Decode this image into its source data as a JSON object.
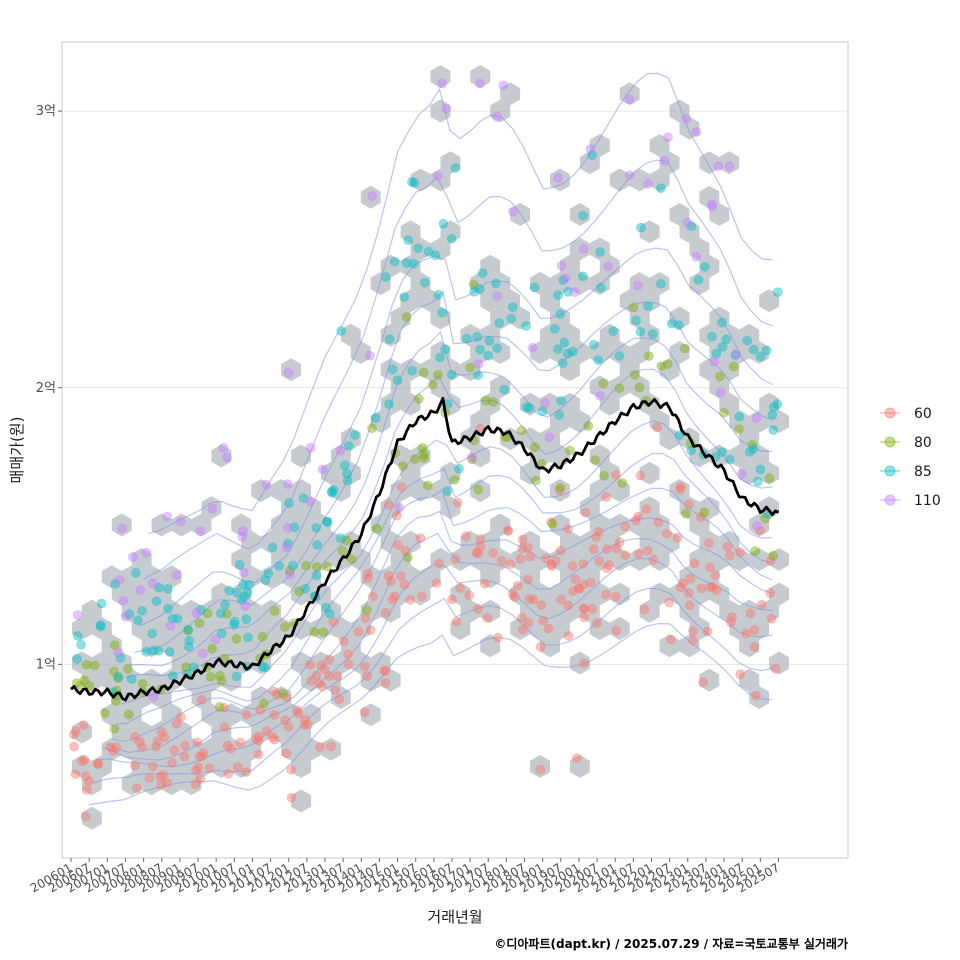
{
  "chart_data": {
    "type": "scatter",
    "xlabel": "거래년월",
    "ylabel": "매매가(원)",
    "caption": "©디아파트(dapt.kr) / 2025.07.29 / 자료=국토교통부 실거래가",
    "x_ticks": [
      "200601",
      "200607",
      "200701",
      "200707",
      "200801",
      "200807",
      "200901",
      "200907",
      "201001",
      "201007",
      "201101",
      "201107",
      "201201",
      "201207",
      "201301",
      "201307",
      "201401",
      "201407",
      "201501",
      "201507",
      "201601",
      "201607",
      "201701",
      "201707",
      "201801",
      "201807",
      "201901",
      "201907",
      "202001",
      "202007",
      "202101",
      "202107",
      "202201",
      "202207",
      "202301",
      "202307",
      "202401",
      "202407",
      "202501",
      "202507"
    ],
    "y_ticks": [
      {
        "value": 1.0,
        "label": "1억"
      },
      {
        "value": 2.0,
        "label": "2억"
      },
      {
        "value": 3.0,
        "label": "3억"
      }
    ],
    "xlim": [
      "2005-10",
      "2027-06"
    ],
    "ylim": [
      0.3,
      3.25
    ],
    "y_unit": "억원",
    "grid": true,
    "legend_position": "right",
    "series": [
      {
        "name": "60",
        "color": "#F8766D"
      },
      {
        "name": "80",
        "color": "#7CAE00"
      },
      {
        "name": "85",
        "color": "#00BFC4"
      },
      {
        "name": "110",
        "color": "#C77CFF"
      }
    ],
    "hexbin_color": "#A7AFB5",
    "density_contour_color": "#7B95E4",
    "trend_line_color": "#000000",
    "trend_line": [
      [
        "2006-01",
        0.91
      ],
      [
        "2006-07",
        0.9
      ],
      [
        "2007-01",
        0.9
      ],
      [
        "2007-07",
        0.88
      ],
      [
        "2008-01",
        0.9
      ],
      [
        "2008-07",
        0.91
      ],
      [
        "2009-01",
        0.94
      ],
      [
        "2009-07",
        0.97
      ],
      [
        "2010-01",
        1.01
      ],
      [
        "2010-07",
        1.0
      ],
      [
        "2011-01",
        0.99
      ],
      [
        "2011-07",
        1.05
      ],
      [
        "2012-01",
        1.1
      ],
      [
        "2012-07",
        1.2
      ],
      [
        "2013-01",
        1.3
      ],
      [
        "2013-07",
        1.38
      ],
      [
        "2014-01",
        1.47
      ],
      [
        "2014-07",
        1.62
      ],
      [
        "2015-01",
        1.8
      ],
      [
        "2015-07",
        1.88
      ],
      [
        "2016-01",
        1.91
      ],
      [
        "2016-04",
        1.95
      ],
      [
        "2016-07",
        1.8
      ],
      [
        "2017-01",
        1.82
      ],
      [
        "2017-07",
        1.85
      ],
      [
        "2018-01",
        1.84
      ],
      [
        "2018-07",
        1.78
      ],
      [
        "2019-01",
        1.7
      ],
      [
        "2019-07",
        1.72
      ],
      [
        "2020-01",
        1.76
      ],
      [
        "2020-07",
        1.82
      ],
      [
        "2021-01",
        1.88
      ],
      [
        "2021-07",
        1.93
      ],
      [
        "2022-01",
        1.95
      ],
      [
        "2022-07",
        1.93
      ],
      [
        "2023-01",
        1.82
      ],
      [
        "2023-07",
        1.76
      ],
      [
        "2024-01",
        1.7
      ],
      [
        "2024-07",
        1.6
      ],
      [
        "2025-01",
        1.56
      ],
      [
        "2025-07",
        1.55
      ]
    ]
  }
}
